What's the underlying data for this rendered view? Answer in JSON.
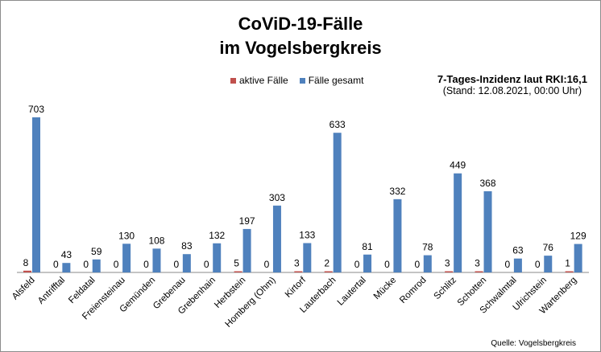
{
  "chart_data": {
    "type": "bar",
    "title": [
      "CoViD-19-Fälle",
      "im Vogelsbergkreis"
    ],
    "categories": [
      "Alsfeld",
      "Antrifftal",
      "Feldatal",
      "Freiensteinau",
      "Gemünden",
      "Grebenau",
      "Grebenhain",
      "Herbstein",
      "Homberg (Ohm)",
      "Kirtorf",
      "Lauterbach",
      "Lautertal",
      "Mücke",
      "Romrod",
      "Schlitz",
      "Schotten",
      "Schwalmtal",
      "Ulrichstein",
      "Wartenberg"
    ],
    "series": [
      {
        "name": "aktive Fälle",
        "color": "#c0504d",
        "values": [
          8,
          0,
          0,
          0,
          0,
          0,
          0,
          5,
          0,
          3,
          2,
          0,
          0,
          0,
          3,
          3,
          0,
          0,
          1
        ]
      },
      {
        "name": "Fälle gesamt",
        "color": "#4f81bd",
        "values": [
          703,
          43,
          59,
          130,
          108,
          83,
          132,
          197,
          303,
          133,
          633,
          81,
          332,
          78,
          449,
          368,
          63,
          76,
          129
        ]
      }
    ],
    "ylim": [
      0,
      703
    ],
    "grid": false,
    "legend": "top-center"
  },
  "info": {
    "incidence": "7-Tages-Inzidenz laut RKI:16,1",
    "date": "(Stand: 12.08.2021, 00:00 Uhr)"
  },
  "source": "Quelle: Vogelsbergkreis"
}
